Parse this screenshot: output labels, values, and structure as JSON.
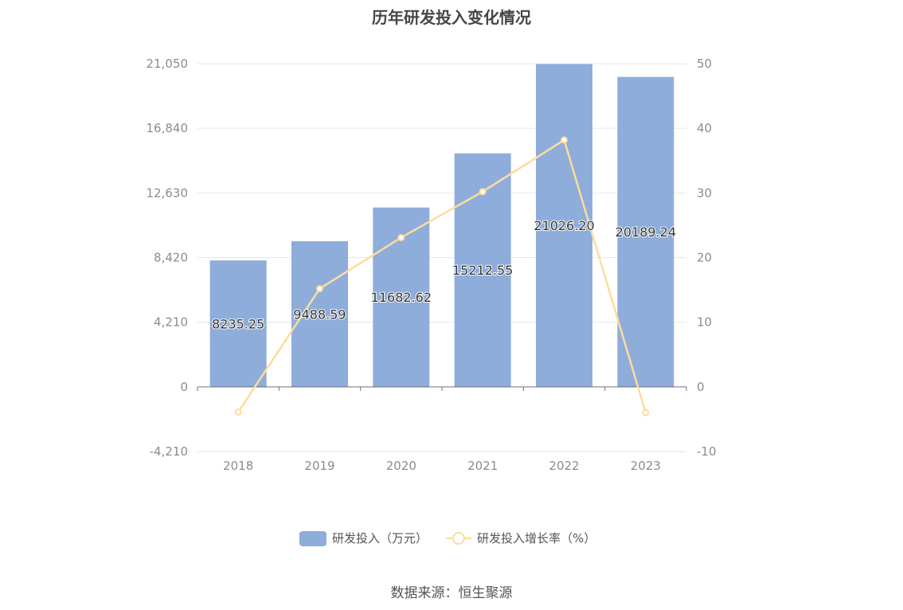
{
  "chart_data": {
    "type": "bar",
    "title": "历年研发投入变化情况",
    "categories": [
      "2018",
      "2019",
      "2020",
      "2021",
      "2022",
      "2023"
    ],
    "series": [
      {
        "name": "研发投入（万元）",
        "type": "bar",
        "axis": "left",
        "color": "#8eadda",
        "values": [
          8235.25,
          9488.59,
          11682.62,
          15212.55,
          21026.2,
          20189.24
        ],
        "labels": [
          "8235.25",
          "9488.59",
          "11682.62",
          "15212.55",
          "21026.20",
          "20189.24"
        ]
      },
      {
        "name": "研发投入增长率（%）",
        "type": "line",
        "axis": "right",
        "color": "#fddc9d",
        "values": [
          -3.9,
          15.2,
          23.1,
          30.2,
          38.2,
          -4.0
        ]
      }
    ],
    "left_axis": {
      "ticks": [
        "21,050",
        "16,840",
        "12,630",
        "8,420",
        "4,210",
        "0",
        "-4,210"
      ],
      "ylim": [
        -4210,
        21050
      ]
    },
    "right_axis": {
      "ticks": [
        "50",
        "40",
        "30",
        "20",
        "10",
        "0",
        "-10"
      ],
      "ylim": [
        -10,
        50
      ]
    },
    "grid": true,
    "legend_position": "bottom"
  },
  "source": "数据来源：恒生聚源"
}
